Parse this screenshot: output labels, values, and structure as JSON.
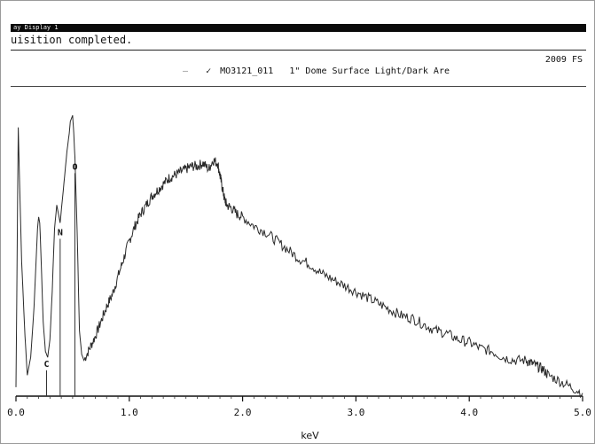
{
  "window": {
    "title": "ay Display 1",
    "status": "uisition completed."
  },
  "header": {
    "count_label": "2009 FS"
  },
  "legend": {
    "dash_symbol": "—",
    "check_symbol": "✓",
    "spectrum_id": "MO3121_011",
    "description": "1\" Dome Surface Light/Dark Are"
  },
  "chart_data": {
    "type": "line",
    "title": "",
    "xlabel": "keV",
    "ylabel": "",
    "xlim": [
      0.0,
      5.0
    ],
    "ylim": [
      0,
      100
    ],
    "xticks": [
      0.0,
      1.0,
      2.0,
      3.0,
      4.0,
      5.0
    ],
    "xtick_labels": [
      "0.0",
      "1.0",
      "2.0",
      "3.0",
      "4.0",
      "5.0"
    ],
    "grid": false,
    "series": [
      {
        "name": "MO3121_011",
        "x": [
          0.0,
          0.02,
          0.05,
          0.08,
          0.1,
          0.13,
          0.16,
          0.19,
          0.2,
          0.21,
          0.22,
          0.24,
          0.26,
          0.28,
          0.3,
          0.32,
          0.34,
          0.36,
          0.39,
          0.41,
          0.43,
          0.45,
          0.47,
          0.48,
          0.5,
          0.51,
          0.52,
          0.54,
          0.56,
          0.58,
          0.6,
          0.65,
          0.7,
          0.75,
          0.8,
          0.85,
          0.9,
          0.95,
          1.0,
          1.05,
          1.1,
          1.15,
          1.2,
          1.25,
          1.3,
          1.35,
          1.4,
          1.45,
          1.5,
          1.55,
          1.6,
          1.65,
          1.7,
          1.74,
          1.78,
          1.8,
          1.82,
          1.84,
          1.86,
          1.9,
          1.95,
          2.0,
          2.1,
          2.2,
          2.3,
          2.4,
          2.5,
          2.6,
          2.7,
          2.8,
          2.9,
          3.0,
          3.1,
          3.2,
          3.3,
          3.4,
          3.5,
          3.6,
          3.7,
          3.8,
          3.9,
          4.0,
          4.1,
          4.2,
          4.3,
          4.4,
          4.5,
          4.55,
          4.6,
          4.65,
          4.7,
          4.8,
          4.9,
          5.0
        ],
        "values": [
          3,
          90,
          45,
          20,
          7,
          13,
          30,
          56,
          60,
          58,
          48,
          25,
          15,
          13,
          19,
          35,
          56,
          64,
          58,
          66,
          74,
          82,
          88,
          92,
          94,
          88,
          80,
          55,
          22,
          14,
          12,
          16,
          20,
          25,
          30,
          34,
          40,
          46,
          52,
          57,
          61,
          64,
          67,
          69,
          71,
          73,
          74,
          75,
          76,
          77,
          77,
          78,
          76,
          79,
          78,
          74,
          70,
          66,
          64,
          63,
          61,
          60,
          57,
          55,
          52,
          49,
          46,
          44,
          41,
          39,
          37,
          35,
          33,
          31,
          29,
          27,
          26,
          24,
          22,
          21,
          19,
          18,
          16,
          15,
          13,
          12,
          12,
          11,
          10,
          9,
          7,
          5,
          3,
          1
        ]
      }
    ],
    "peak_labels": [
      {
        "text": "C",
        "x": 0.27
      },
      {
        "text": "N",
        "x": 0.39
      },
      {
        "text": "O",
        "x": 0.52
      }
    ],
    "legend_position": "top"
  }
}
